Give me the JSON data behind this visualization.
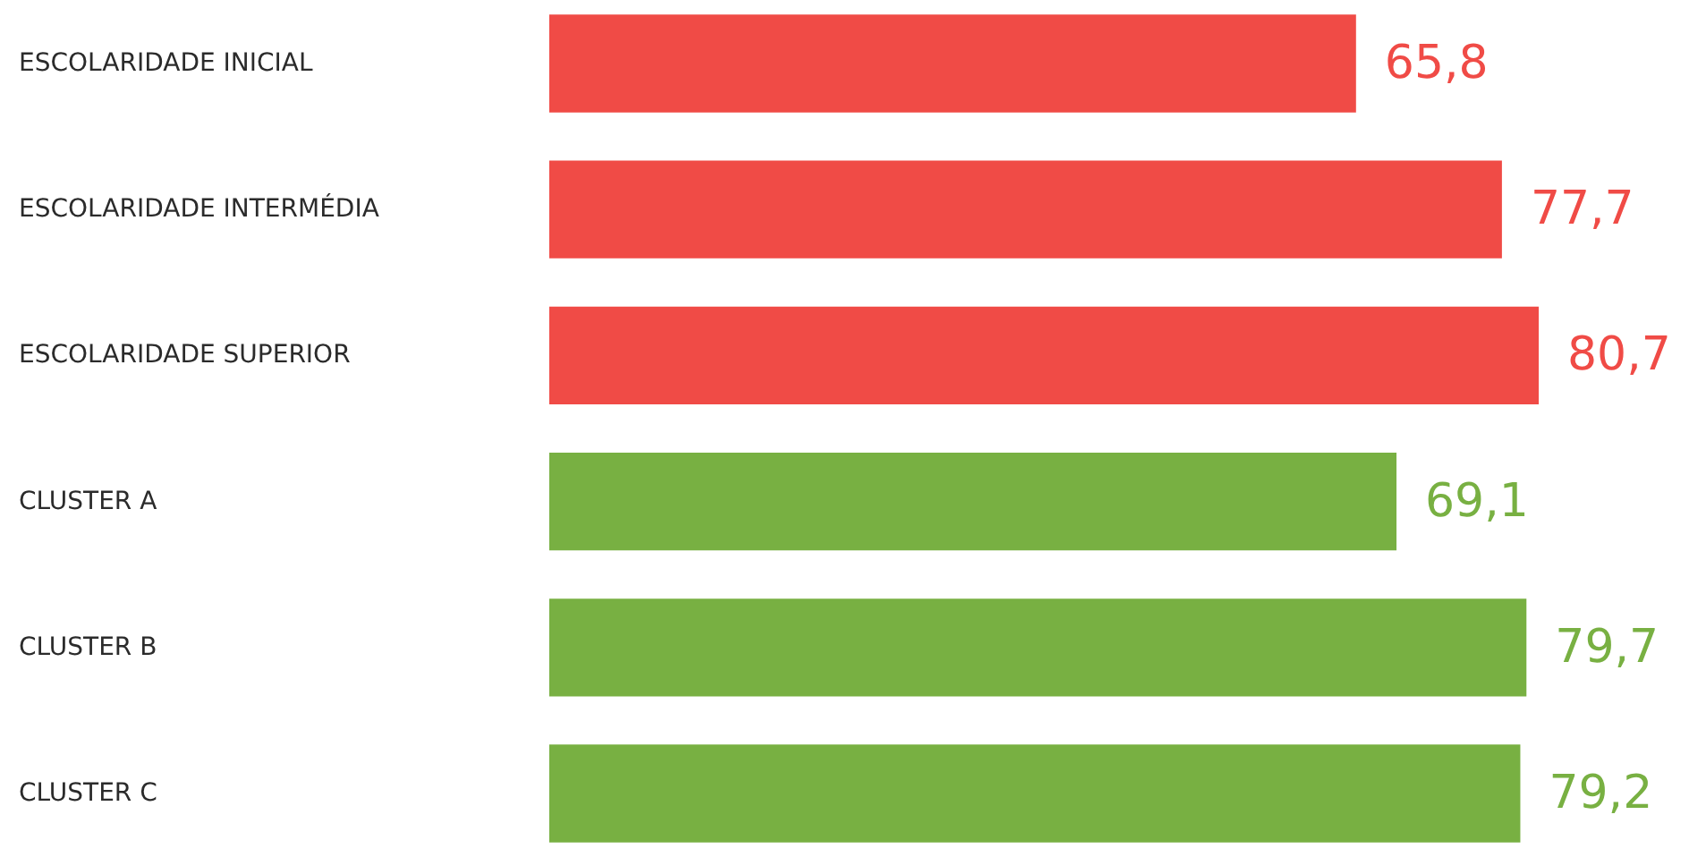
{
  "chart_data": {
    "type": "bar",
    "orientation": "horizontal",
    "categories": [
      "ESCOLARIDADE INICIAL",
      "ESCOLARIDADE INTERMÉDIA",
      "ESCOLARIDADE SUPERIOR",
      "CLUSTER A",
      "CLUSTER B",
      "CLUSTER C"
    ],
    "values": [
      65.8,
      77.7,
      80.7,
      69.1,
      79.7,
      79.2
    ],
    "colors": [
      "#f04b46",
      "#f04b46",
      "#f04b46",
      "#78b042",
      "#78b042",
      "#78b042"
    ],
    "value_labels": [
      "65,8",
      "77,7",
      "80,7",
      "69,1",
      "79,7",
      "79,2"
    ]
  }
}
